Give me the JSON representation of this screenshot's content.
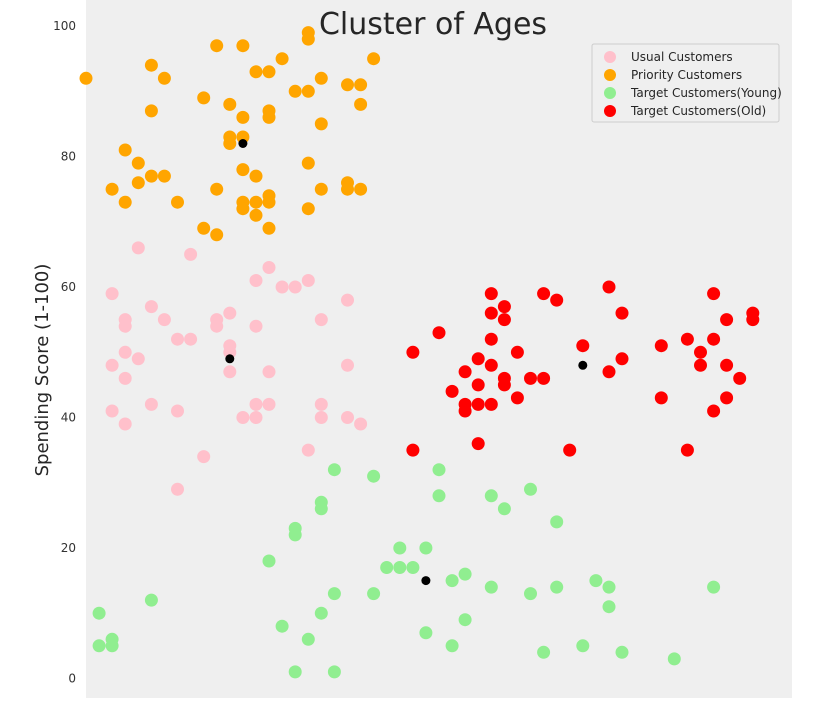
{
  "chart_data": {
    "type": "scatter",
    "title": "Cluster of Ages",
    "xlabel": "",
    "ylabel": "Spending Score (1-100)",
    "xlim": [
      18,
      72
    ],
    "ylim": [
      -3,
      104
    ],
    "yticks": [
      "0",
      "20",
      "40",
      "60",
      "80",
      "100"
    ],
    "ytick_values": [
      0,
      20,
      40,
      60,
      80,
      100
    ],
    "grid": false,
    "legend_position": "top-right",
    "background": "#efefef",
    "series": [
      {
        "name": "Usual Customers",
        "color": "#ffc0cb",
        "points": [
          [
            20,
            59
          ],
          [
            20,
            48
          ],
          [
            20,
            41
          ],
          [
            21,
            55
          ],
          [
            21,
            54
          ],
          [
            21,
            50
          ],
          [
            21,
            46
          ],
          [
            21,
            39
          ],
          [
            22,
            66
          ],
          [
            22,
            49
          ],
          [
            23,
            57
          ],
          [
            23,
            42
          ],
          [
            24,
            55
          ],
          [
            25,
            52
          ],
          [
            25,
            41
          ],
          [
            25,
            29
          ],
          [
            26,
            52
          ],
          [
            26,
            65
          ],
          [
            27,
            34
          ],
          [
            28,
            54
          ],
          [
            28,
            55
          ],
          [
            29,
            56
          ],
          [
            29,
            51
          ],
          [
            29,
            47
          ],
          [
            29,
            50
          ],
          [
            30,
            40
          ],
          [
            31,
            61
          ],
          [
            31,
            54
          ],
          [
            31,
            42
          ],
          [
            31,
            40
          ],
          [
            32,
            63
          ],
          [
            32,
            47
          ],
          [
            32,
            42
          ],
          [
            33,
            60
          ],
          [
            34,
            60
          ],
          [
            35,
            61
          ],
          [
            35,
            35
          ],
          [
            36,
            55
          ],
          [
            36,
            42
          ],
          [
            36,
            40
          ],
          [
            38,
            58
          ],
          [
            38,
            48
          ],
          [
            38,
            40
          ],
          [
            39,
            39
          ]
        ]
      },
      {
        "name": "Priority Customers",
        "color": "#ffa500",
        "points": [
          [
            18,
            92
          ],
          [
            20,
            75
          ],
          [
            21,
            81
          ],
          [
            21,
            73
          ],
          [
            22,
            79
          ],
          [
            22,
            76
          ],
          [
            23,
            94
          ],
          [
            23,
            87
          ],
          [
            23,
            77
          ],
          [
            24,
            92
          ],
          [
            24,
            77
          ],
          [
            25,
            73
          ],
          [
            27,
            89
          ],
          [
            27,
            69
          ],
          [
            28,
            97
          ],
          [
            28,
            75
          ],
          [
            28,
            68
          ],
          [
            29,
            88
          ],
          [
            29,
            83
          ],
          [
            29,
            82
          ],
          [
            30,
            97
          ],
          [
            30,
            86
          ],
          [
            30,
            83
          ],
          [
            30,
            78
          ],
          [
            30,
            73
          ],
          [
            30,
            72
          ],
          [
            31,
            93
          ],
          [
            31,
            77
          ],
          [
            31,
            73
          ],
          [
            31,
            71
          ],
          [
            32,
            93
          ],
          [
            32,
            87
          ],
          [
            32,
            86
          ],
          [
            32,
            74
          ],
          [
            32,
            73
          ],
          [
            32,
            69
          ],
          [
            33,
            95
          ],
          [
            34,
            90
          ],
          [
            35,
            99
          ],
          [
            35,
            98
          ],
          [
            35,
            90
          ],
          [
            35,
            79
          ],
          [
            35,
            72
          ],
          [
            36,
            92
          ],
          [
            36,
            85
          ],
          [
            36,
            75
          ],
          [
            38,
            91
          ],
          [
            38,
            76
          ],
          [
            38,
            75
          ],
          [
            39,
            91
          ],
          [
            39,
            88
          ],
          [
            39,
            75
          ],
          [
            40,
            95
          ]
        ]
      },
      {
        "name": "Target Customers(Young)",
        "color": "#90ee90",
        "points": [
          [
            19,
            10
          ],
          [
            19,
            5
          ],
          [
            20,
            6
          ],
          [
            20,
            5
          ],
          [
            23,
            12
          ],
          [
            32,
            18
          ],
          [
            33,
            8
          ],
          [
            34,
            23
          ],
          [
            34,
            22
          ],
          [
            34,
            1
          ],
          [
            35,
            6
          ],
          [
            36,
            27
          ],
          [
            36,
            26
          ],
          [
            36,
            10
          ],
          [
            37,
            32
          ],
          [
            37,
            13
          ],
          [
            37,
            1
          ],
          [
            40,
            31
          ],
          [
            40,
            13
          ],
          [
            41,
            17
          ],
          [
            42,
            20
          ],
          [
            42,
            17
          ],
          [
            43,
            17
          ],
          [
            44,
            20
          ],
          [
            44,
            7
          ],
          [
            45,
            32
          ],
          [
            45,
            28
          ],
          [
            46,
            15
          ],
          [
            46,
            5
          ],
          [
            47,
            16
          ],
          [
            47,
            9
          ],
          [
            49,
            28
          ],
          [
            49,
            14
          ],
          [
            50,
            26
          ],
          [
            52,
            29
          ],
          [
            52,
            13
          ],
          [
            53,
            4
          ],
          [
            54,
            24
          ],
          [
            54,
            14
          ],
          [
            56,
            5
          ],
          [
            57,
            15
          ],
          [
            58,
            14
          ],
          [
            58,
            11
          ],
          [
            59,
            4
          ],
          [
            63,
            3
          ],
          [
            66,
            14
          ]
        ]
      },
      {
        "name": "Target Customers(Old)",
        "color": "#ff0000",
        "points": [
          [
            43,
            50
          ],
          [
            43,
            35
          ],
          [
            45,
            53
          ],
          [
            46,
            44
          ],
          [
            47,
            47
          ],
          [
            47,
            42
          ],
          [
            47,
            41
          ],
          [
            48,
            49
          ],
          [
            48,
            45
          ],
          [
            48,
            42
          ],
          [
            48,
            36
          ],
          [
            49,
            59
          ],
          [
            49,
            56
          ],
          [
            49,
            52
          ],
          [
            49,
            48
          ],
          [
            49,
            42
          ],
          [
            50,
            57
          ],
          [
            50,
            55
          ],
          [
            50,
            46
          ],
          [
            50,
            45
          ],
          [
            51,
            50
          ],
          [
            51,
            43
          ],
          [
            52,
            46
          ],
          [
            53,
            46
          ],
          [
            53,
            59
          ],
          [
            54,
            58
          ],
          [
            55,
            35
          ],
          [
            56,
            51
          ],
          [
            58,
            60
          ],
          [
            58,
            47
          ],
          [
            59,
            56
          ],
          [
            59,
            49
          ],
          [
            62,
            51
          ],
          [
            62,
            43
          ],
          [
            64,
            52
          ],
          [
            64,
            35
          ],
          [
            65,
            50
          ],
          [
            65,
            48
          ],
          [
            66,
            59
          ],
          [
            66,
            52
          ],
          [
            66,
            41
          ],
          [
            67,
            55
          ],
          [
            67,
            48
          ],
          [
            67,
            43
          ],
          [
            68,
            46
          ],
          [
            69,
            56
          ],
          [
            69,
            55
          ]
        ]
      },
      {
        "name": "",
        "color": "#000000",
        "points": [
          [
            30,
            82
          ],
          [
            29,
            49
          ],
          [
            44,
            15
          ],
          [
            56,
            48
          ]
        ]
      }
    ]
  }
}
